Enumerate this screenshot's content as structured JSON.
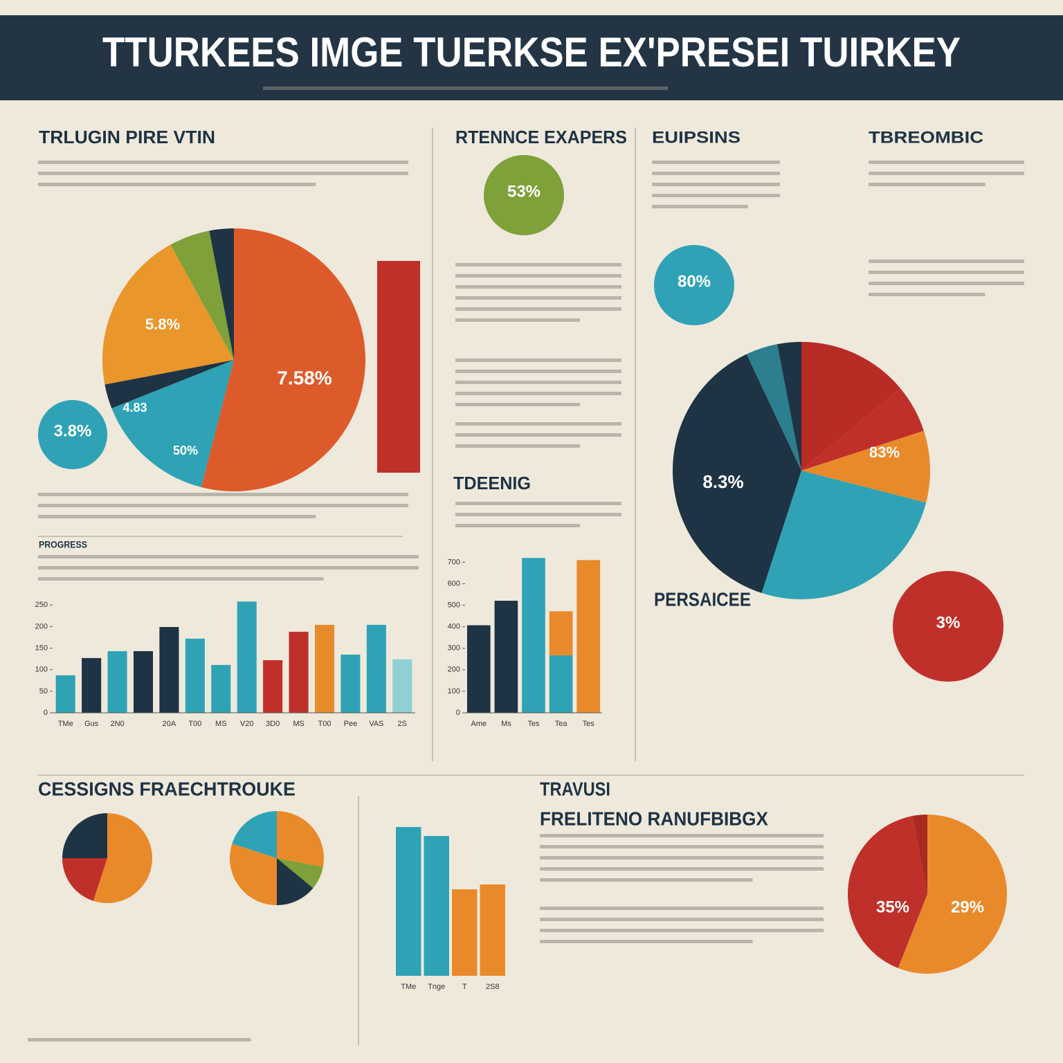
{
  "header": {
    "title": "TTURKEES IMGE TUERKSE EX'PRESEI TUIRKEY"
  },
  "headings": [
    "TRLUGIN PIRE VTIN",
    "PROGRESS",
    "RTENNCE EXAPERS",
    "EUIPSINS",
    "TBREOMBIC",
    "TDEENIG",
    "PERSAICEE",
    "CESSIGNS FRAECHTROUKE",
    "TRAVUSI",
    "FRELITENO RANUFBIBGX"
  ],
  "callouts": [
    "53%",
    "80%",
    "3%",
    "3.8%"
  ],
  "chart_data": [
    {
      "type": "pie",
      "values": [
        54,
        15,
        3,
        20,
        5,
        3
      ],
      "colors": [
        "#dd5a2b",
        "#2fa3b5",
        "#1e3344",
        "#e9962b",
        "#7ea13a",
        "#1e3344"
      ],
      "annotations": [
        "7.58%",
        "5.8%",
        "50%",
        "4.83"
      ]
    },
    {
      "type": "bar",
      "categories": [
        "TMe",
        "Gus",
        "2N0",
        null,
        "20A",
        "T00",
        "MS",
        "V20",
        "3D0",
        "MS",
        "T00",
        "Pee",
        "VAS",
        "2S"
      ],
      "series": [
        {
          "values": [
            87,
            127,
            143,
            143,
            199,
            172,
            111,
            258,
            122,
            188,
            204,
            135,
            204,
            124
          ],
          "colors": [
            "#2fa3b5",
            "#1e3344",
            "#2fa3b5",
            "#1e3344",
            "#1e3344",
            "#2fa3b5",
            "#2fa3b5",
            "#2fa3b5",
            "#c0302a",
            "#c0302a",
            "#e98a2a",
            "#2fa3b5",
            "#2fa3b5",
            "#8fcfd6"
          ]
        }
      ],
      "ylim": [
        0,
        260
      ],
      "yticks": [
        0,
        50,
        100,
        150,
        200,
        250
      ]
    },
    {
      "type": "bar",
      "categories": [
        "Ame",
        "Ms",
        "Tes",
        "Tea",
        "Tes"
      ],
      "series": [
        {
          "values": [
            407,
            521,
            720,
            267,
            null
          ],
          "colors": [
            "#1e3344",
            "#1e3344",
            "#2fa3b5",
            "#2fa3b5",
            "#2fa3b5"
          ]
        },
        {
          "values": [
            null,
            null,
            null,
            205,
            710
          ],
          "color": "#e98a2a"
        }
      ],
      "ylim": [
        0,
        740
      ],
      "yticks": [
        0,
        100,
        200,
        300,
        400,
        500,
        600,
        700
      ]
    },
    {
      "type": "pie",
      "values": [
        14,
        6,
        9,
        26,
        38,
        4,
        3
      ],
      "colors": [
        "#b92b25",
        "#c0302a",
        "#e98a2a",
        "#2fa3b5",
        "#1e3344",
        "#2b7f8e",
        "#1e3344"
      ],
      "annotations": [
        "8.3%",
        "83%"
      ]
    },
    {
      "type": "pie",
      "values": [
        56,
        41,
        3
      ],
      "colors": [
        "#e98a2a",
        "#c0302a",
        "#a82a22"
      ],
      "annotations": [
        "35%",
        "29%"
      ]
    },
    {
      "type": "bar",
      "categories": [
        "TMe",
        "Tnge",
        "T",
        "2S8"
      ],
      "series": [
        {
          "values": [
            215,
            202,
            125,
            132
          ],
          "colors": [
            "#2fa3b5",
            "#2fa3b5",
            "#e98a2a",
            "#e98a2a"
          ]
        }
      ],
      "ylim": [
        0,
        220
      ]
    },
    {
      "type": "pie",
      "values": [
        55,
        20,
        25
      ],
      "colors": [
        "#e98a2a",
        "#c0302a",
        "#1e3344"
      ]
    },
    {
      "type": "pie",
      "values": [
        28,
        8,
        14,
        30,
        20
      ],
      "colors": [
        "#e98a2a",
        "#7ea13a",
        "#1e3344",
        "#e98a2a",
        "#2fa3b5"
      ]
    },
    {
      "type": "bar",
      "categories": [
        null
      ],
      "series": [
        {
          "values": [
            100
          ],
          "color": "#c0302a"
        }
      ],
      "ylim": [
        0,
        100
      ]
    }
  ]
}
